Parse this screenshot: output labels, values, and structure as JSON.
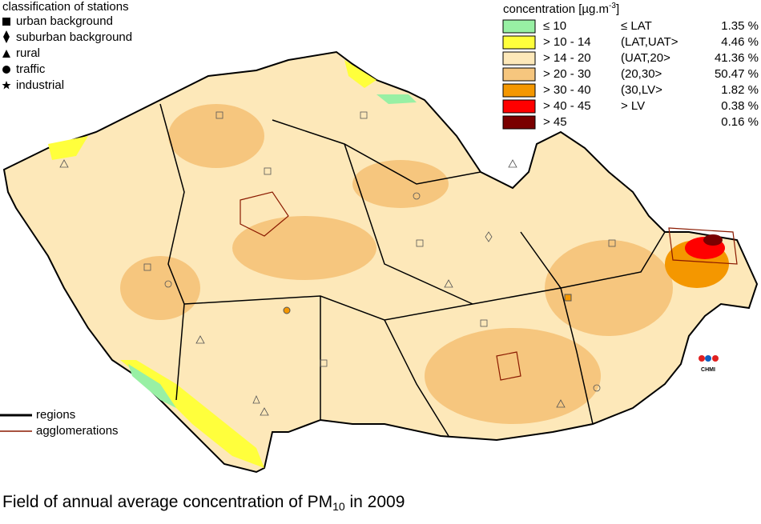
{
  "stations_legend": {
    "title": "classification of stations",
    "items": [
      "urban background",
      "suburban background",
      "rural",
      "traffic",
      "industrial"
    ]
  },
  "concentration_legend": {
    "title": "concentration [µg.m",
    "title_sup": "-3",
    "title_end": "]",
    "rows": [
      {
        "range": "≤ 10",
        "class": "≤ LAT",
        "share": "1.35 %",
        "color": "#98f0a4"
      },
      {
        "range": "> 10 - 14",
        "class": "(LAT,UAT>",
        "share": "4.46 %",
        "color": "#ffff3c"
      },
      {
        "range": "> 14 - 20",
        "class": "(UAT,20>",
        "share": "41.36 %",
        "color": "#fde8b9"
      },
      {
        "range": "> 20 - 30",
        "class": "(20,30>",
        "share": "50.47 %",
        "color": "#f6c67e"
      },
      {
        "range": "> 30 - 40",
        "class": "(30,LV>",
        "share": "1.82 %",
        "color": "#f49700"
      },
      {
        "range": "> 40 - 45",
        "class": "> LV",
        "share": "0.38 %",
        "color": "#ff0000"
      },
      {
        "range": "> 45",
        "share": "0.16 %",
        "color": "#7a0000"
      }
    ]
  },
  "lines_legend": {
    "regions": "regions",
    "agglomerations": "agglomerations"
  },
  "logo": "CHMI",
  "caption": {
    "text": "Field of annual average concentration of PM",
    "sub": "10",
    "end": " in 2009"
  }
}
